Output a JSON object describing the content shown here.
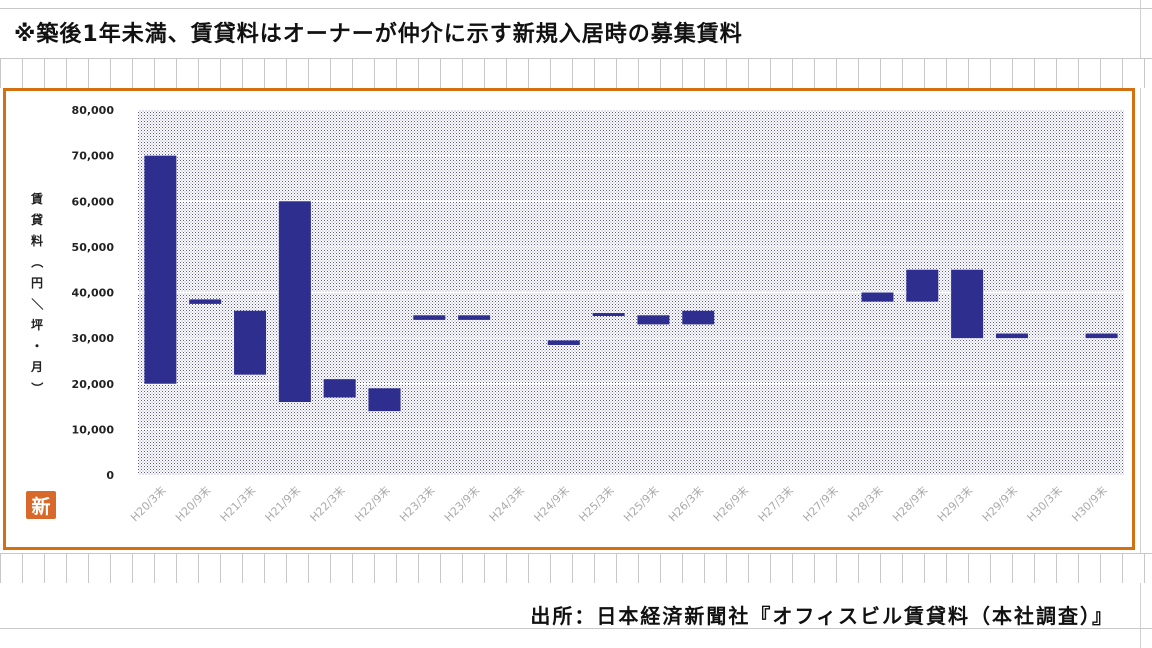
{
  "header_note": "※築後1年未満、賃貸料はオーナーが仲介に示す新規入居時の募集賃料",
  "source_text": "出所：日本経済新聞社『オフィスビル賃貸料（本社調査）』",
  "badge_icon": "新",
  "colors": {
    "bar": "#2e2e8f",
    "frame": "#d4700f",
    "badge": "#d8692a"
  },
  "chart_data": {
    "type": "bar",
    "subtype": "floating-range",
    "ylabel": "賃貸料（円／坪・月）",
    "ylim": [
      0,
      80000
    ],
    "yticks": [
      "0",
      "10,000",
      "20,000",
      "30,000",
      "40,000",
      "50,000",
      "60,000",
      "70,000",
      "80,000"
    ],
    "yticks_values": [
      0,
      10000,
      20000,
      30000,
      40000,
      50000,
      60000,
      70000,
      80000
    ],
    "grid": true,
    "categories": [
      "H20/3末",
      "H20/9末",
      "H21/3末",
      "H21/9末",
      "H22/3末",
      "H22/9末",
      "H23/3末",
      "H23/9末",
      "H24/3末",
      "H24/9末",
      "H25/3末",
      "H25/9末",
      "H26/3末",
      "H26/9末",
      "H27/3末",
      "H27/9末",
      "H28/3末",
      "H28/9末",
      "H29/3末",
      "H29/9末",
      "H30/3末",
      "H30/9末"
    ],
    "ranges": [
      [
        20000,
        70000
      ],
      [
        37500,
        38500
      ],
      [
        22000,
        36000
      ],
      [
        16000,
        60000
      ],
      [
        17000,
        21000
      ],
      [
        14000,
        19000
      ],
      [
        34000,
        35000
      ],
      [
        34000,
        35000
      ],
      null,
      [
        28500,
        29500
      ],
      [
        35000,
        35500
      ],
      [
        33000,
        35000
      ],
      [
        33000,
        36000
      ],
      null,
      null,
      null,
      [
        38000,
        40000
      ],
      [
        38000,
        45000
      ],
      [
        30000,
        45000
      ],
      [
        30000,
        31000
      ],
      null,
      [
        30000,
        31000
      ]
    ]
  }
}
